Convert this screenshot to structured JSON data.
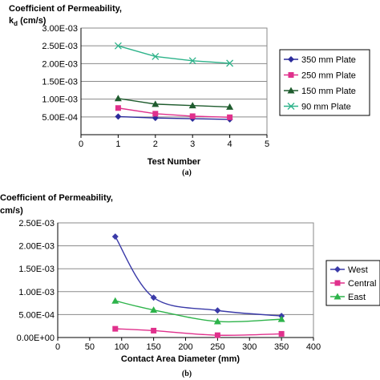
{
  "chart_data": [
    {
      "type": "line",
      "ylabel_line1": "Coefficient of Permeability,",
      "ylabel_line2": "k",
      "ylabel_sub": "d",
      "ylabel_units": " (cm/s)",
      "xlabel": "Test Number",
      "caption": "(a)",
      "xlim": [
        0,
        5
      ],
      "ylim": [
        0,
        0.003
      ],
      "x_ticks": [
        "0",
        "1",
        "2",
        "3",
        "4",
        "5"
      ],
      "y_ticks": [
        "3.00E-03",
        "2.50E-03",
        "2.00E-03",
        "1.50E-03",
        "1.00E-03",
        "5.00E-04",
        ""
      ],
      "grid": true,
      "legend": "right",
      "series": [
        {
          "name": "350 mm Plate",
          "color": "#2b2b9b",
          "marker": "diamond",
          "x": [
            1,
            2,
            3,
            4
          ],
          "values": [
            0.00051,
            0.00047,
            0.00045,
            0.00043
          ]
        },
        {
          "name": "250 mm Plate",
          "color": "#e0308c",
          "marker": "square",
          "x": [
            1,
            2,
            3,
            4
          ],
          "values": [
            0.00075,
            0.00059,
            0.00052,
            0.00049
          ]
        },
        {
          "name": "150 mm Plate",
          "color": "#1f5c2e",
          "marker": "triangle",
          "x": [
            1,
            2,
            3,
            4
          ],
          "values": [
            0.00102,
            0.00086,
            0.00082,
            0.00078
          ]
        },
        {
          "name": "90 mm Plate",
          "color": "#2db38a",
          "marker": "x",
          "x": [
            1,
            2,
            3,
            4
          ],
          "values": [
            0.0025,
            0.0022,
            0.00208,
            0.00201
          ]
        }
      ]
    },
    {
      "type": "line",
      "ylabel_line1": "Coefficient of Permeability,",
      "ylabel_units": "cm/s)",
      "xlabel": "Contact Area Diameter (mm)",
      "caption": "(b)",
      "xlim": [
        0,
        400
      ],
      "ylim": [
        0,
        0.0025
      ],
      "x_ticks": [
        "0",
        "50",
        "100",
        "150",
        "200",
        "250",
        "300",
        "350",
        "400"
      ],
      "y_ticks": [
        "2.50E-03",
        "2.00E-03",
        "1.50E-03",
        "1.00E-03",
        "5.00E-04",
        "0.00E+00"
      ],
      "grid": true,
      "legend": "right",
      "series": [
        {
          "name": "West",
          "color": "#3a3aa8",
          "marker": "diamond",
          "x": [
            90,
            150,
            250,
            350
          ],
          "values": [
            0.0022,
            0.00087,
            0.00059,
            0.00047
          ]
        },
        {
          "name": "Central",
          "color": "#e0308c",
          "marker": "square",
          "x": [
            90,
            150,
            250,
            350
          ],
          "values": [
            0.00019,
            0.00015,
            5e-05,
            8e-05
          ]
        },
        {
          "name": "East",
          "color": "#2db34a",
          "marker": "triangle",
          "x": [
            90,
            150,
            250,
            350
          ],
          "values": [
            0.0008,
            0.0006,
            0.00035,
            0.0004
          ]
        }
      ]
    }
  ]
}
